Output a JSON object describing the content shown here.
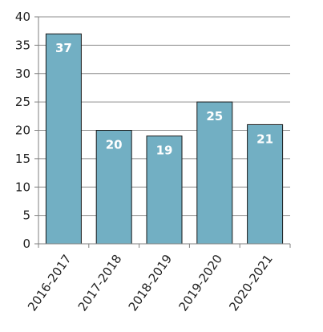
{
  "chart_data": {
    "type": "bar",
    "title": "",
    "xlabel": "",
    "ylabel": "",
    "categories": [
      "2016-2017",
      "2017-2018",
      "2018-2019",
      "2019-2020",
      "2020-2021"
    ],
    "values": [
      37,
      20,
      19,
      25,
      21
    ],
    "data_labels": [
      "37",
      "20",
      "19",
      "25",
      "21"
    ],
    "ylim": [
      0,
      40
    ],
    "y_ticks": [
      0,
      5,
      10,
      15,
      20,
      25,
      30,
      35,
      40
    ],
    "grid": true,
    "legend": "none",
    "colors": {
      "bar_fill": "#72afc3",
      "bar_stroke": "#1a1a1a",
      "gridline": "#8c8c8c",
      "axis": "#7f7f7f",
      "label_text": "#222222",
      "data_label_text": "#ffffff"
    }
  }
}
